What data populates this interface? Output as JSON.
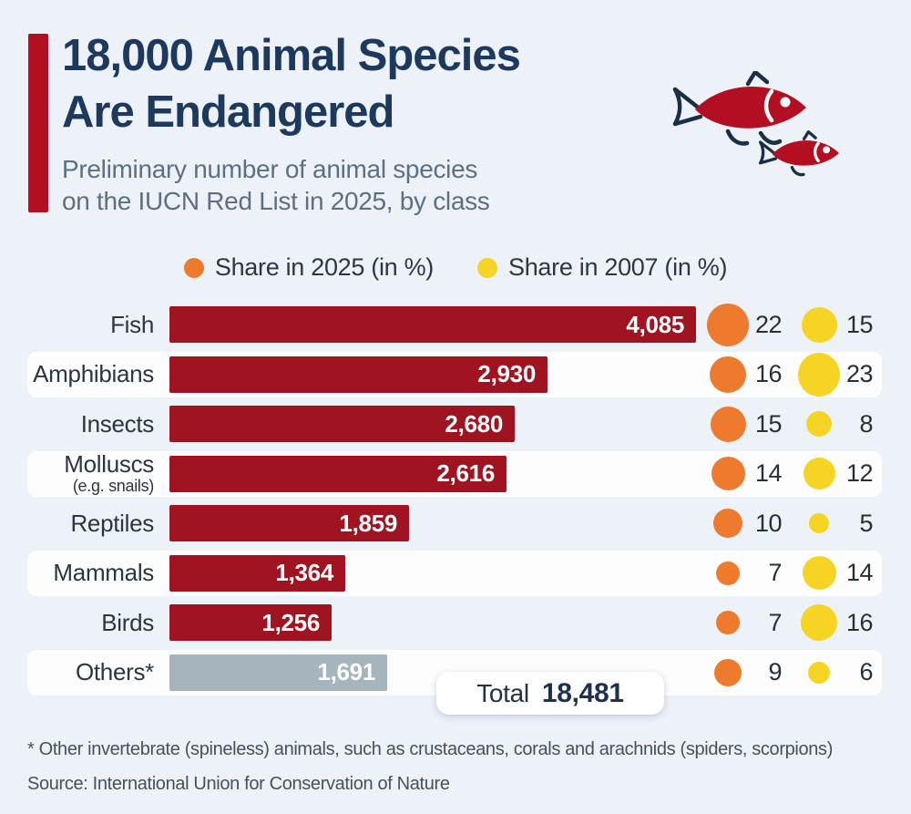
{
  "header": {
    "title_line1": "18,000 Animal Species",
    "title_line2": "Are Endangered",
    "subtitle_line1": "Preliminary number of animal species",
    "subtitle_line2": "on the IUCN Red List in 2025, by class"
  },
  "legend": [
    {
      "label": "Share in 2025 (in %)",
      "color": "#ee7a2d"
    },
    {
      "label": "Share in 2007 (in %)",
      "color": "#f5d423"
    }
  ],
  "colors": {
    "background": "#edf1f8",
    "accent_red": "#b30e21",
    "bar_red": "#a01421",
    "bar_gray": "#a5b4bd",
    "orange": "#ee7a2d",
    "yellow": "#f5d423",
    "title_navy": "#1d3a5e",
    "fish_outline": "#1c2e45"
  },
  "chart_data": {
    "type": "bar",
    "title": "18,000 Animal Species Are Endangered",
    "subtitle": "Preliminary number of animal species on the IUCN Red List in 2025, by class",
    "categories": [
      "Fish",
      "Amphibians",
      "Insects",
      "Molluscs (e.g. snails)",
      "Reptiles",
      "Mammals",
      "Birds",
      "Others*"
    ],
    "series": [
      {
        "name": "Species on IUCN Red List 2025",
        "values": [
          4085,
          2930,
          2680,
          2616,
          1859,
          1364,
          1256,
          1691
        ]
      },
      {
        "name": "Share in 2025 (in %)",
        "values": [
          22,
          16,
          15,
          14,
          10,
          7,
          7,
          9
        ]
      },
      {
        "name": "Share in 2007 (in %)",
        "values": [
          15,
          23,
          8,
          12,
          5,
          14,
          16,
          6
        ]
      }
    ],
    "xlim": [
      0,
      4085
    ],
    "total": 18481,
    "legend_position": "top",
    "grid": false
  },
  "rows": [
    {
      "label": "Fish",
      "sublabel": "",
      "value": "4,085",
      "value_num": 4085,
      "share2025": 22,
      "share2007": 15,
      "band": false,
      "bar": "red"
    },
    {
      "label": "Amphibians",
      "sublabel": "",
      "value": "2,930",
      "value_num": 2930,
      "share2025": 16,
      "share2007": 23,
      "band": true,
      "bar": "red"
    },
    {
      "label": "Insects",
      "sublabel": "",
      "value": "2,680",
      "value_num": 2680,
      "share2025": 15,
      "share2007": 8,
      "band": false,
      "bar": "red"
    },
    {
      "label": "Molluscs",
      "sublabel": "(e.g. snails)",
      "value": "2,616",
      "value_num": 2616,
      "share2025": 14,
      "share2007": 12,
      "band": true,
      "bar": "red"
    },
    {
      "label": "Reptiles",
      "sublabel": "",
      "value": "1,859",
      "value_num": 1859,
      "share2025": 10,
      "share2007": 5,
      "band": false,
      "bar": "red"
    },
    {
      "label": "Mammals",
      "sublabel": "",
      "value": "1,364",
      "value_num": 1364,
      "share2025": 7,
      "share2007": 14,
      "band": true,
      "bar": "red"
    },
    {
      "label": "Birds",
      "sublabel": "",
      "value": "1,256",
      "value_num": 1256,
      "share2025": 7,
      "share2007": 16,
      "band": false,
      "bar": "red"
    },
    {
      "label": "Others*",
      "sublabel": "",
      "value": "1,691",
      "value_num": 1691,
      "share2025": 9,
      "share2007": 6,
      "band": true,
      "bar": "gray"
    }
  ],
  "total": {
    "label": "Total",
    "value": "18,481"
  },
  "footer": {
    "footnote": "* Other invertebrate (spineless) animals, such as crustaceans, corals and arachnids (spiders, scorpions)",
    "source": "Source: International Union for Conservation of Nature"
  }
}
